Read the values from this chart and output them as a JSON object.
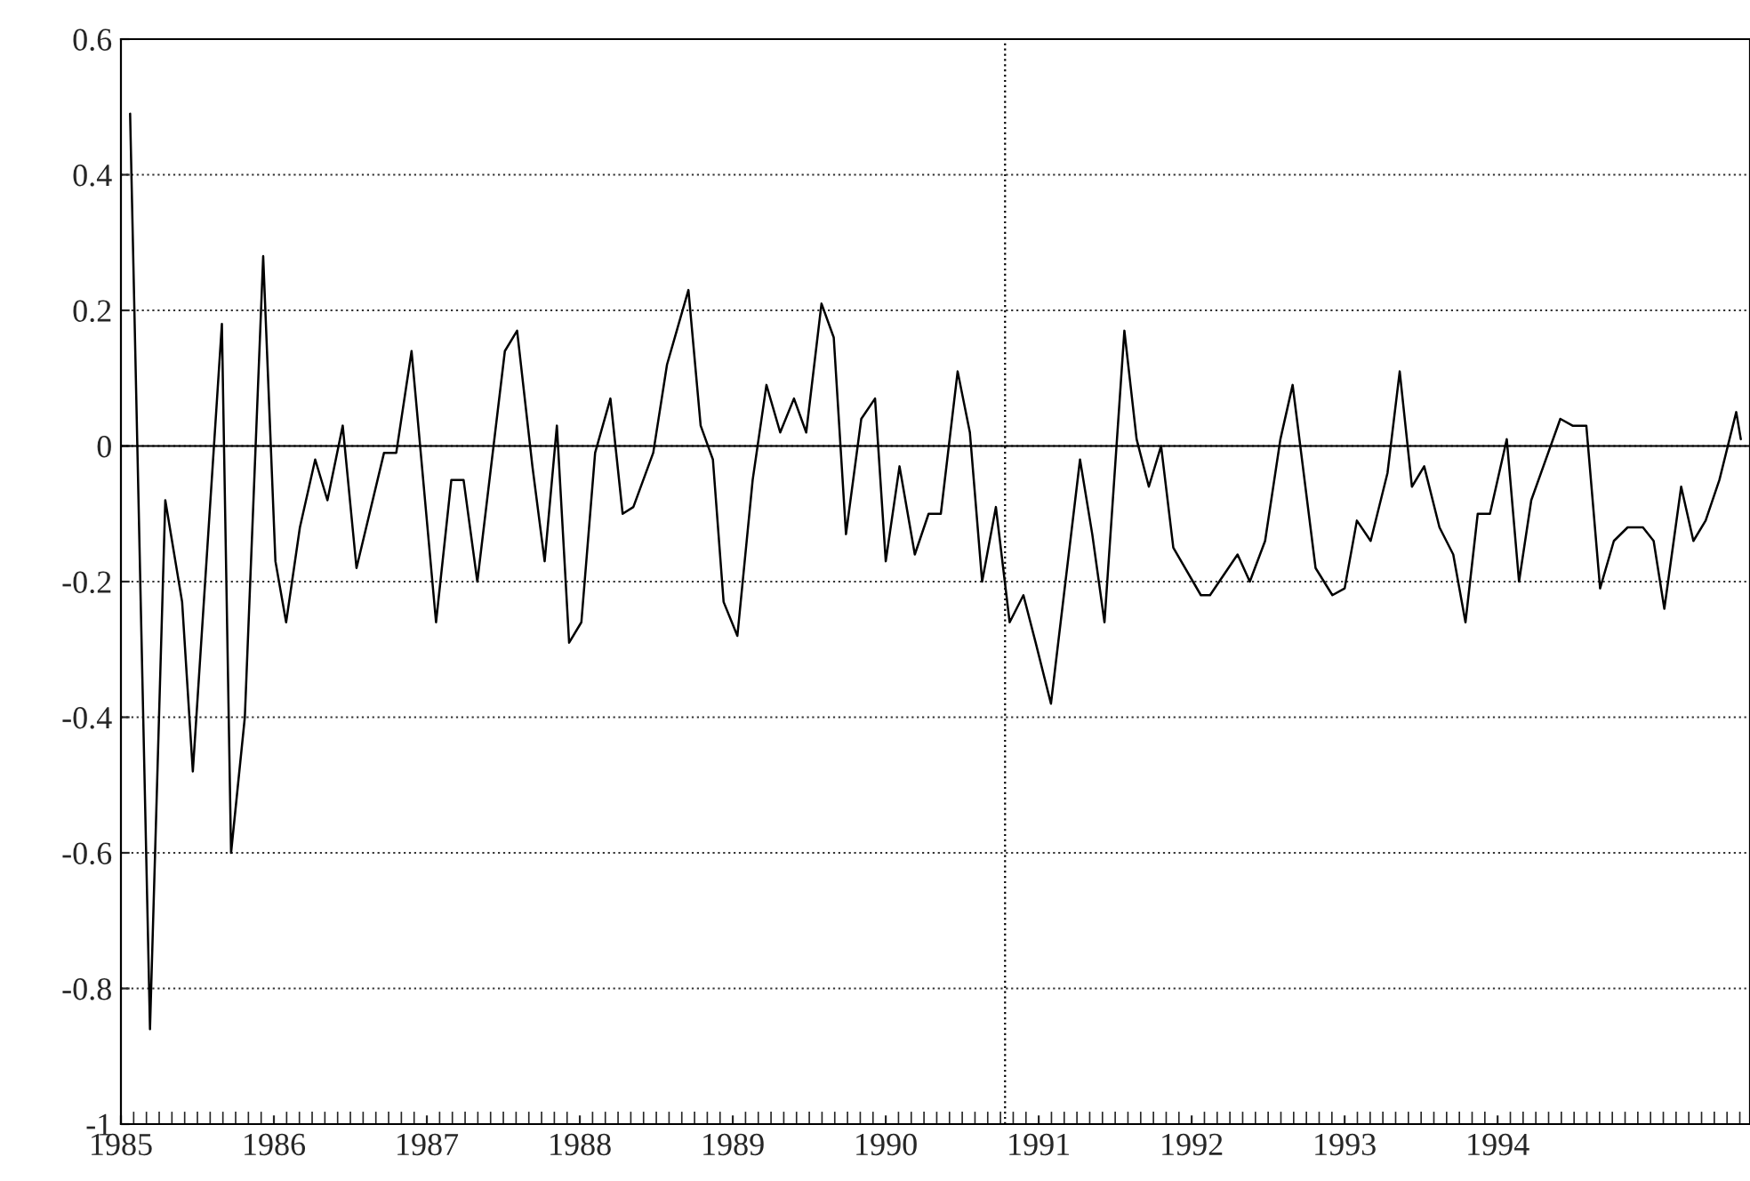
{
  "chart_data": {
    "type": "line",
    "color": "#000000",
    "x": [
      1985.06,
      1985.19,
      1985.29,
      1985.4,
      1985.47,
      1985.66,
      1985.72,
      1985.81,
      1985.93,
      1986.01,
      1986.08,
      1986.17,
      1986.27,
      1986.35,
      1986.45,
      1986.54,
      1986.72,
      1986.8,
      1986.9,
      1987.06,
      1987.16,
      1987.24,
      1987.33,
      1987.51,
      1987.59,
      1987.69,
      1987.77,
      1987.85,
      1987.93,
      1988.01,
      1988.1,
      1988.2,
      1988.28,
      1988.35,
      1988.48,
      1988.57,
      1988.71,
      1988.79,
      1988.87,
      1988.94,
      1989.03,
      1989.13,
      1989.22,
      1989.31,
      1989.4,
      1989.48,
      1989.58,
      1989.66,
      1989.74,
      1989.84,
      1989.93,
      1990.0,
      1990.09,
      1990.19,
      1990.28,
      1990.36,
      1990.47,
      1990.55,
      1990.63,
      1990.72,
      1990.81,
      1990.9,
      1990.98,
      1991.08,
      1991.27,
      1991.35,
      1991.43,
      1991.56,
      1991.64,
      1991.72,
      1991.8,
      1991.88,
      1992.06,
      1992.12,
      1992.3,
      1992.38,
      1992.48,
      1992.58,
      1992.66,
      1992.81,
      1992.92,
      1993.0,
      1993.08,
      1993.17,
      1993.28,
      1993.36,
      1993.44,
      1993.52,
      1993.62,
      1993.71,
      1993.79,
      1993.87,
      1993.95,
      1994.06,
      1994.14,
      1994.22,
      1994.41,
      1994.49,
      1994.58,
      1994.67,
      1994.76,
      1994.85,
      1994.95,
      1995.02,
      1995.09,
      1995.2,
      1995.28,
      1995.36,
      1995.45,
      1995.56,
      1995.59
    ],
    "values": [
      0.49,
      -0.86,
      -0.08,
      -0.23,
      -0.48,
      0.18,
      -0.6,
      -0.4,
      0.28,
      -0.17,
      -0.26,
      -0.12,
      -0.02,
      -0.08,
      0.03,
      -0.18,
      -0.01,
      -0.01,
      0.14,
      -0.26,
      -0.05,
      -0.05,
      -0.2,
      0.14,
      0.17,
      -0.03,
      -0.17,
      0.03,
      -0.29,
      -0.26,
      -0.01,
      0.07,
      -0.1,
      -0.09,
      -0.01,
      0.12,
      0.23,
      0.03,
      -0.02,
      -0.23,
      -0.28,
      -0.05,
      0.09,
      0.02,
      0.07,
      0.02,
      0.21,
      0.16,
      -0.13,
      0.04,
      0.07,
      -0.17,
      -0.03,
      -0.16,
      -0.1,
      -0.1,
      0.11,
      0.02,
      -0.2,
      -0.09,
      -0.26,
      -0.22,
      -0.29,
      -0.38,
      -0.02,
      -0.13,
      -0.26,
      0.17,
      0.01,
      -0.06,
      0.0,
      -0.15,
      -0.22,
      -0.22,
      -0.16,
      -0.2,
      -0.14,
      0.01,
      0.09,
      -0.18,
      -0.22,
      -0.21,
      -0.11,
      -0.14,
      -0.04,
      0.11,
      -0.06,
      -0.03,
      -0.12,
      -0.16,
      -0.26,
      -0.1,
      -0.1,
      0.01,
      -0.2,
      -0.08,
      0.04,
      0.03,
      0.03,
      -0.21,
      -0.14,
      -0.12,
      -0.12,
      -0.14,
      -0.24,
      -0.06,
      -0.14,
      -0.11,
      -0.05,
      0.05,
      0.01
    ],
    "xlim": [
      1985,
      1995.65
    ],
    "xticks": [
      1985,
      1986,
      1987,
      1988,
      1989,
      1990,
      1991,
      1992,
      1993,
      1994
    ],
    "ylim": [
      -1,
      0.6
    ],
    "yticks": [
      -1,
      -0.8,
      -0.6,
      -0.4,
      -0.2,
      0,
      0.2,
      0.4,
      0.6
    ],
    "grid": "y",
    "line_style": "solid",
    "ref_lines": [
      {
        "axis": "y",
        "value": 0,
        "line_style": "solid",
        "color": "#000000"
      },
      {
        "axis": "x",
        "value": 1990.78,
        "line_style": "dotted",
        "color": "#000000"
      }
    ]
  }
}
